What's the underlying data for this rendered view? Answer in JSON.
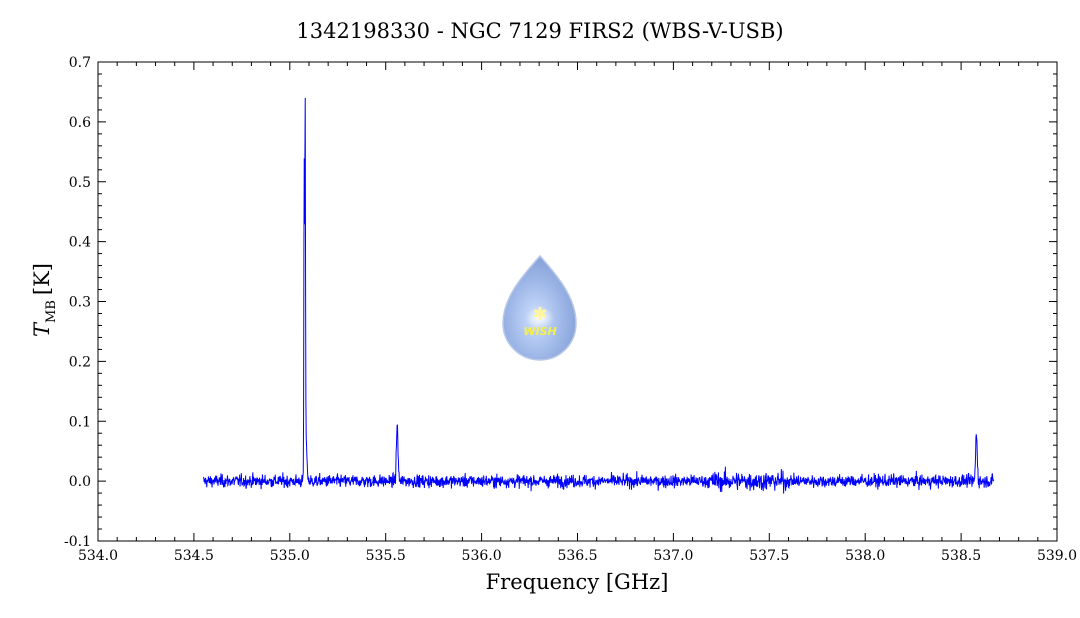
{
  "chart_data": {
    "type": "line",
    "title": "1342198330 - NGC 7129 FIRS2 (WBS-V-USB)",
    "xlabel": "Frequency [GHz]",
    "ylabel_main": "T",
    "ylabel_sub": "MB",
    "ylabel_unit": "[K]",
    "xlim": [
      534.0,
      539.0
    ],
    "ylim": [
      -0.1,
      0.7
    ],
    "x_ticks": [
      "534.0",
      "534.5",
      "535.0",
      "535.5",
      "536.0",
      "536.5",
      "537.0",
      "537.5",
      "538.0",
      "538.5",
      "539.0"
    ],
    "y_ticks": [
      "-0.1",
      "0.0",
      "0.1",
      "0.2",
      "0.3",
      "0.4",
      "0.5",
      "0.6",
      "0.7"
    ],
    "grid": false,
    "series": [
      {
        "line_color": "#0000ff",
        "x_range": [
          534.55,
          538.67
        ],
        "noise_rms": 0.009,
        "features": [
          {
            "x": 535.08,
            "y": 0.6
          },
          {
            "x": 535.075,
            "y": 0.52
          },
          {
            "x": 535.085,
            "y": 0.075
          },
          {
            "x": 535.56,
            "y": 0.093
          },
          {
            "x": 538.58,
            "y": 0.08
          }
        ]
      }
    ]
  },
  "logo": {
    "text": "WISH"
  }
}
